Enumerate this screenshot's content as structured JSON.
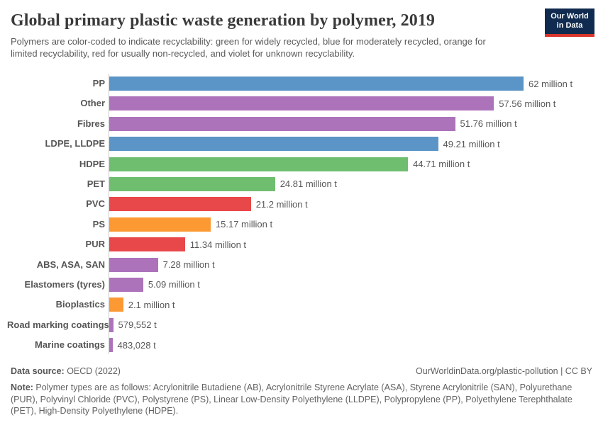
{
  "header": {
    "title": "Global primary plastic waste generation by polymer, 2019",
    "subtitle": "Polymers are color-coded to indicate recyclability: green for widely recycled, blue for moderately recycled, orange for limited recyclability, red for usually non-recycled, and violet for unknown recyclability.",
    "logo": {
      "line1": "Our World",
      "line2": "in Data",
      "bg_color": "#102B4F",
      "accent_color": "#D8352B"
    }
  },
  "chart_data": {
    "type": "bar",
    "orientation": "horizontal",
    "title": "Global primary plastic waste generation by polymer, 2019",
    "unit": "tonnes",
    "xlim": [
      0,
      62000000
    ],
    "grid": false,
    "legend_position": "none",
    "categories": [
      "PP",
      "Other",
      "Fibres",
      "LDPE, LLDPE",
      "HDPE",
      "PET",
      "PVC",
      "PS",
      "PUR",
      "ABS, ASA, SAN",
      "Elastomers (tyres)",
      "Bioplastics",
      "Road marking coatings",
      "Marine coatings"
    ],
    "values": [
      62000000,
      57560000,
      51760000,
      49210000,
      44710000,
      24810000,
      21200000,
      15170000,
      11340000,
      7280000,
      5090000,
      2100000,
      579552,
      483028
    ],
    "value_labels": [
      "62 million t",
      "57.56 million t",
      "51.76 million t",
      "49.21 million t",
      "44.71 million t",
      "24.81 million t",
      "21.2 million t",
      "15.17 million t",
      "11.34 million t",
      "7.28 million t",
      "5.09 million t",
      "2.1 million t",
      "579,552 t",
      "483,028 t"
    ],
    "bar_color_keys": [
      "blue",
      "violet",
      "violet",
      "blue",
      "green",
      "green",
      "red",
      "orange",
      "red",
      "violet",
      "violet",
      "orange",
      "violet",
      "violet"
    ],
    "color_meaning": {
      "green": "widely recycled",
      "blue": "moderately recycled",
      "orange": "limited recyclability",
      "red": "usually non-recycled",
      "violet": "unknown recyclability"
    }
  },
  "palette": {
    "blue": "#5B94C7",
    "violet": "#AC73BA",
    "green": "#6FBE70",
    "red": "#E8484A",
    "orange": "#FD9933",
    "axis_line": "#c9c9c9"
  },
  "footer": {
    "source_label": "Data source:",
    "source_value": " OECD (2022)",
    "link": "OurWorldinData.org/plastic-pollution | CC BY",
    "note_label": "Note:",
    "note_value": " Polymer types are as follows: Acrylonitrile Butadiene (AB), Acrylonitrile Styrene Acrylate (ASA), Styrene Acrylonitrile (SAN), Polyurethane (PUR), Polyvinyl Chloride (PVC), Polystyrene (PS), Linear Low-Density Polyethylene (LLDPE), Polypropylene (PP), Polyethylene Terephthalate (PET), High-Density Polyethylene (HDPE)."
  }
}
